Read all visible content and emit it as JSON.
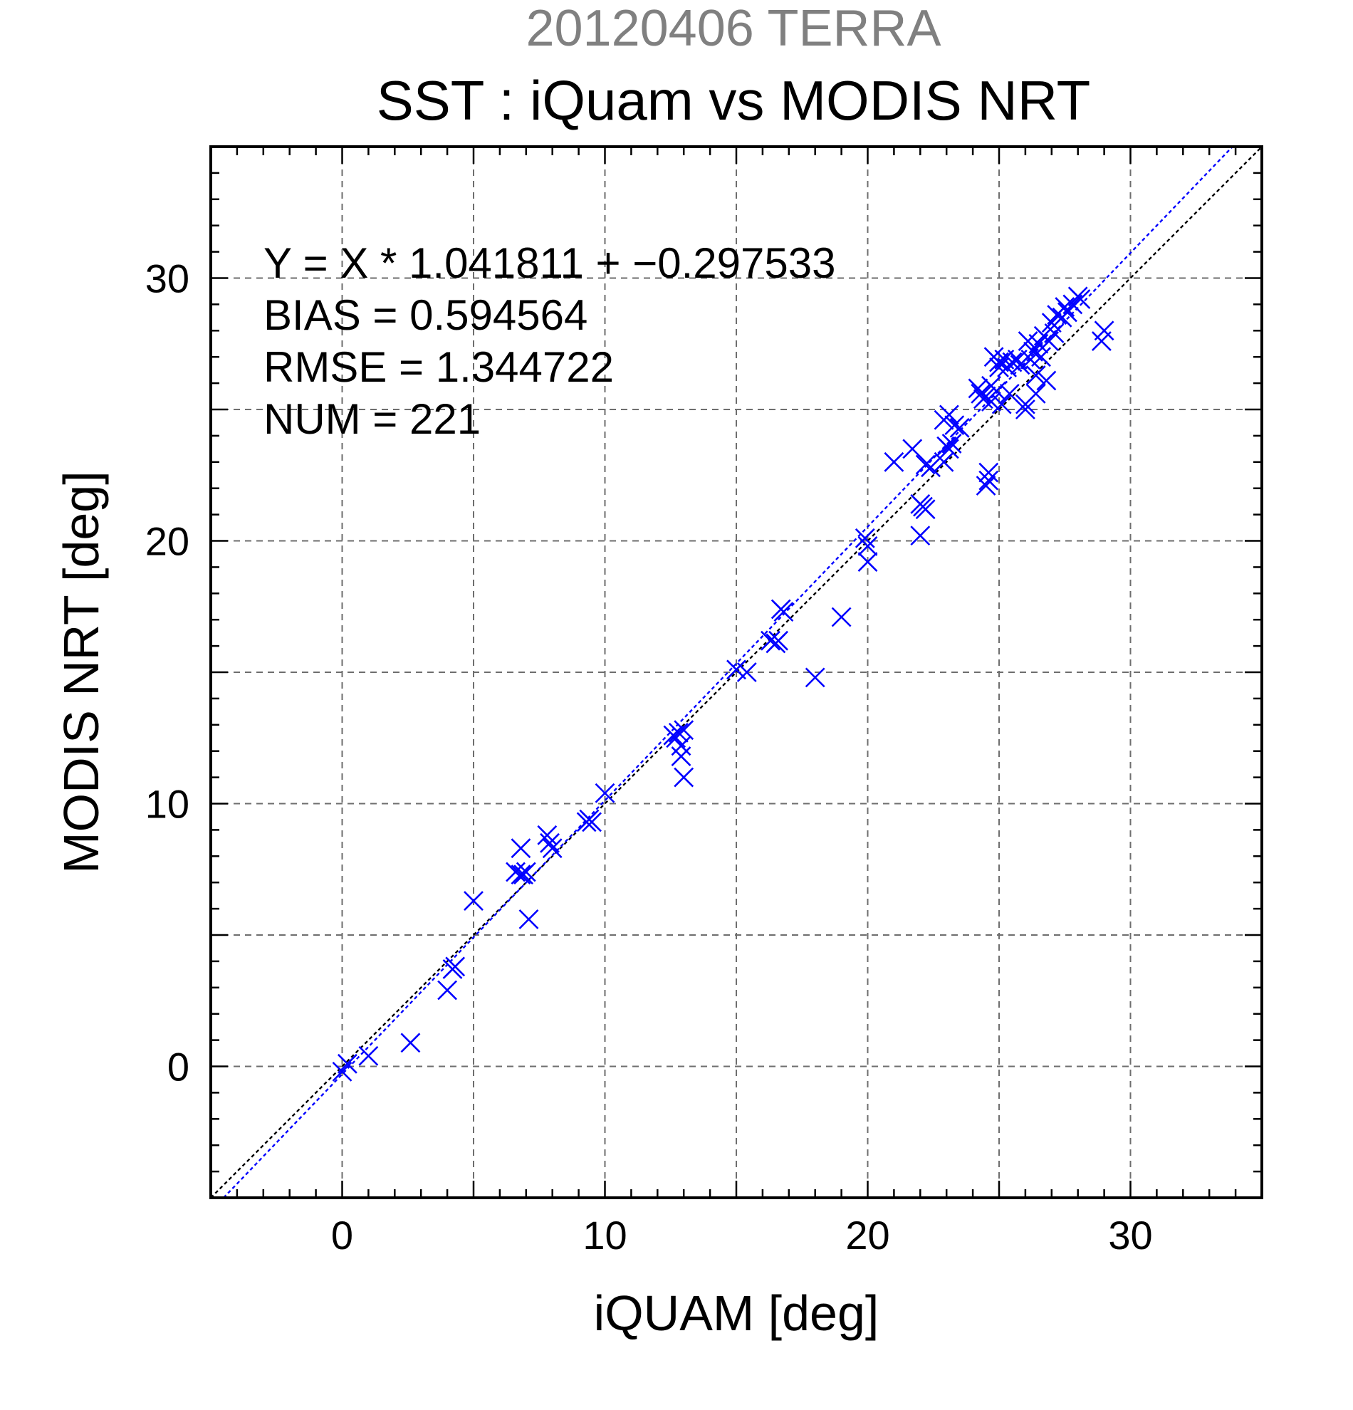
{
  "chart_data": {
    "type": "scatter",
    "suptitle": "20120406 TERRA",
    "title": "SST : iQuam vs MODIS NRT",
    "xlabel": "iQUAM [deg]",
    "ylabel": "MODIS NRT [deg]",
    "xlim": [
      -5,
      35
    ],
    "ylim": [
      -5,
      35
    ],
    "xticks": [
      0,
      10,
      20,
      30
    ],
    "yticks": [
      0,
      10,
      20,
      30
    ],
    "grid": true,
    "stats_text": [
      "Y = X * 1.041811 + −0.297533",
      "BIAS = 0.594564",
      "RMSE = 1.344722",
      "NUM = 221"
    ],
    "colors": {
      "points": "#0000ff",
      "fit_line": "#0000ff",
      "identity_line": "#000000",
      "suptitle": "#808080"
    },
    "fit_line": {
      "slope": 1.041811,
      "intercept": -0.297533
    },
    "identity_line": {
      "slope": 1,
      "intercept": 0
    },
    "marker": "x",
    "points": [
      [
        0,
        -0.2
      ],
      [
        0.2,
        0.1
      ],
      [
        1.0,
        0.4
      ],
      [
        2.6,
        0.9
      ],
      [
        4.0,
        2.9
      ],
      [
        4.2,
        3.7
      ],
      [
        4.3,
        3.8
      ],
      [
        5.0,
        6.3
      ],
      [
        6.6,
        7.4
      ],
      [
        6.8,
        7.3
      ],
      [
        6.8,
        8.3
      ],
      [
        6.9,
        7.3
      ],
      [
        7.0,
        7.4
      ],
      [
        7.1,
        5.6
      ],
      [
        7.8,
        8.8
      ],
      [
        7.9,
        8.5
      ],
      [
        8.0,
        8.3
      ],
      [
        9.3,
        9.3
      ],
      [
        9.4,
        9.4
      ],
      [
        9.5,
        9.3
      ],
      [
        10.0,
        10.4
      ],
      [
        12.6,
        12.6
      ],
      [
        12.7,
        12.5
      ],
      [
        12.8,
        12.7
      ],
      [
        12.9,
        12.2
      ],
      [
        12.9,
        11.8
      ],
      [
        13.0,
        12.8
      ],
      [
        13.0,
        11.0
      ],
      [
        15.0,
        15.1
      ],
      [
        15.4,
        15.0
      ],
      [
        16.3,
        16.2
      ],
      [
        16.5,
        16.1
      ],
      [
        16.6,
        16.2
      ],
      [
        16.7,
        17.4
      ],
      [
        16.8,
        17.3
      ],
      [
        18.0,
        14.8
      ],
      [
        19.0,
        17.1
      ],
      [
        19.9,
        20.1
      ],
      [
        20.0,
        19.8
      ],
      [
        20.0,
        19.2
      ],
      [
        21.0,
        23.0
      ],
      [
        21.7,
        23.5
      ],
      [
        22.0,
        20.2
      ],
      [
        22.0,
        21.4
      ],
      [
        22.1,
        21.3
      ],
      [
        22.2,
        21.2
      ],
      [
        22.2,
        22.9
      ],
      [
        22.4,
        22.8
      ],
      [
        22.9,
        23.0
      ],
      [
        22.9,
        24.6
      ],
      [
        23.0,
        23.6
      ],
      [
        23.1,
        23.5
      ],
      [
        23.1,
        24.8
      ],
      [
        23.2,
        23.7
      ],
      [
        23.3,
        24.4
      ],
      [
        23.5,
        24.3
      ],
      [
        24.2,
        25.8
      ],
      [
        24.3,
        25.6
      ],
      [
        24.4,
        25.4
      ],
      [
        24.5,
        25.5
      ],
      [
        24.5,
        22.1
      ],
      [
        24.6,
        22.3
      ],
      [
        24.6,
        22.6
      ],
      [
        24.7,
        25.3
      ],
      [
        24.7,
        25.9
      ],
      [
        24.8,
        27.0
      ],
      [
        24.9,
        25.7
      ],
      [
        25.0,
        26.6
      ],
      [
        25.0,
        26.8
      ],
      [
        25.1,
        25.2
      ],
      [
        25.2,
        26.9
      ],
      [
        25.3,
        26.6
      ],
      [
        25.4,
        25.6
      ],
      [
        25.5,
        26.8
      ],
      [
        25.7,
        26.9
      ],
      [
        25.8,
        26.7
      ],
      [
        26.0,
        25.0
      ],
      [
        26.0,
        25.2
      ],
      [
        26.1,
        27.6
      ],
      [
        26.2,
        26.9
      ],
      [
        26.3,
        27.2
      ],
      [
        26.4,
        25.6
      ],
      [
        26.4,
        26.3
      ],
      [
        26.5,
        27.5
      ],
      [
        26.6,
        27.0
      ],
      [
        26.7,
        27.8
      ],
      [
        26.8,
        26.1
      ],
      [
        26.9,
        27.6
      ],
      [
        27.0,
        28.3
      ],
      [
        27.1,
        27.9
      ],
      [
        27.2,
        28.6
      ],
      [
        27.4,
        28.5
      ],
      [
        27.5,
        28.9
      ],
      [
        27.6,
        28.7
      ],
      [
        27.8,
        29.0
      ],
      [
        28.0,
        29.3
      ],
      [
        28.1,
        29.2
      ],
      [
        28.9,
        27.6
      ],
      [
        29.0,
        28.0
      ]
    ]
  }
}
